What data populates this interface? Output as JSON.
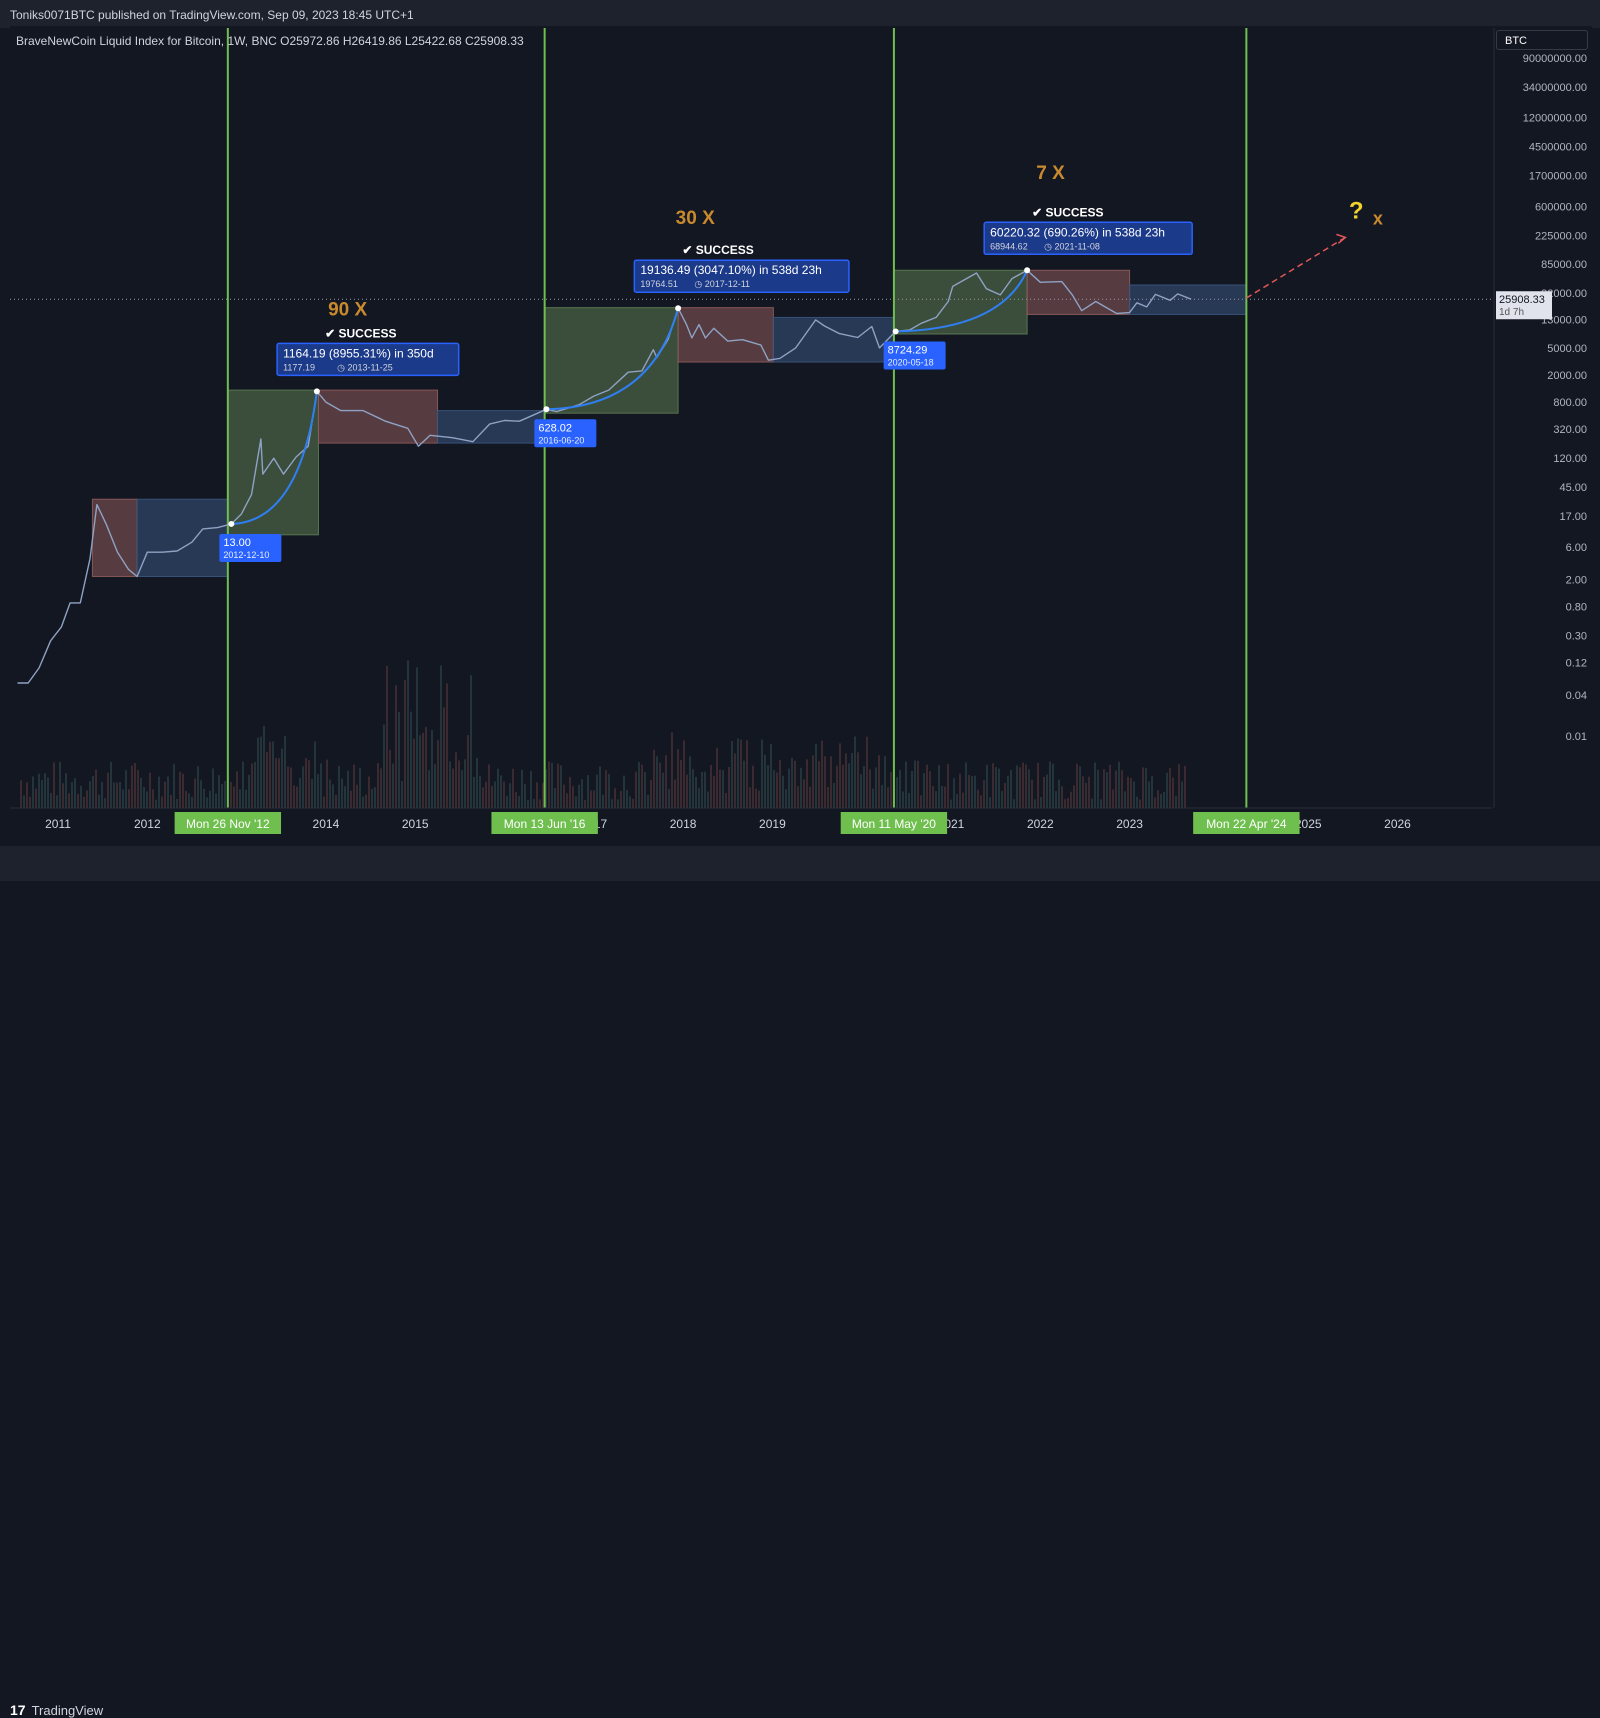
{
  "header": {
    "published": "Toniks0071BTC published on TradingView.com, Sep 09, 2023 18:45 UTC+1"
  },
  "legend": {
    "text": "BraveNewCoin Liquid Index for Bitcoin, 1W, BNC  O25972.86  H26419.86  L25422.68  C25908.33"
  },
  "symbol_box": "BTC",
  "footer": {
    "logo": "TradingView",
    "logo_mark": "17"
  },
  "colors": {
    "bg": "#131722",
    "grid": "#2a2e39",
    "green_line": "#6fbf4f",
    "box_red": "#8e5b5b",
    "box_green": "#5c7c52",
    "box_blue": "#3b557f",
    "price": "#8fa2c4",
    "curve": "#2f7ff3",
    "label_blue": "#2962ff",
    "orange": "#c98a2e",
    "yellow": "#f2d32c",
    "success_white": "#ffffff",
    "dashed_red": "#e05757"
  },
  "chart_data": {
    "type": "line",
    "scale": "log",
    "series_name": "BTC",
    "x_ticks": [
      "2011",
      "2012",
      "2014",
      "2015",
      "2017",
      "2018",
      "2019",
      "2021",
      "2022",
      "2023",
      "2025",
      "2026"
    ],
    "y_ticks": [
      "90000000.00",
      "34000000.00",
      "12000000.00",
      "4500000.00",
      "1700000.00",
      "600000.00",
      "225000.00",
      "85000.00",
      "32000.00",
      "13000.00",
      "5000.00",
      "2000.00",
      "800.00",
      "320.00",
      "120.00",
      "45.00",
      "17.00",
      "6.00",
      "2.00",
      "0.80",
      "0.30",
      "0.12",
      "0.04",
      "0.01"
    ],
    "current_price": "25908.33",
    "current_countdown": "1d 7h",
    "x_range": [
      "2010-07",
      "2026-11"
    ],
    "price_path": [
      [
        "2010-07-18",
        0.06
      ],
      [
        "2010-09-01",
        0.06
      ],
      [
        "2010-10-15",
        0.1
      ],
      [
        "2010-12-01",
        0.25
      ],
      [
        "2011-01-15",
        0.4
      ],
      [
        "2011-02-20",
        0.9
      ],
      [
        "2011-04-01",
        0.9
      ],
      [
        "2011-05-10",
        4
      ],
      [
        "2011-06-08",
        25
      ],
      [
        "2011-07-15",
        13
      ],
      [
        "2011-09-01",
        5
      ],
      [
        "2011-10-15",
        2.8
      ],
      [
        "2011-11-20",
        2.2
      ],
      [
        "2012-01-01",
        5
      ],
      [
        "2012-03-01",
        5
      ],
      [
        "2012-05-01",
        5.2
      ],
      [
        "2012-07-01",
        7
      ],
      [
        "2012-08-15",
        11
      ],
      [
        "2012-10-15",
        11.5
      ],
      [
        "2012-12-10",
        13
      ],
      [
        "2013-01-20",
        18
      ],
      [
        "2013-03-01",
        35
      ],
      [
        "2013-04-09",
        230
      ],
      [
        "2013-04-17",
        70
      ],
      [
        "2013-06-01",
        120
      ],
      [
        "2013-07-10",
        70
      ],
      [
        "2013-09-01",
        125
      ],
      [
        "2013-10-20",
        180
      ],
      [
        "2013-11-25",
        1150
      ],
      [
        "2014-01-01",
        800
      ],
      [
        "2014-03-01",
        600
      ],
      [
        "2014-06-01",
        600
      ],
      [
        "2014-09-01",
        420
      ],
      [
        "2014-12-01",
        330
      ],
      [
        "2015-01-14",
        180
      ],
      [
        "2015-03-01",
        260
      ],
      [
        "2015-06-01",
        240
      ],
      [
        "2015-08-24",
        210
      ],
      [
        "2015-11-01",
        380
      ],
      [
        "2016-01-01",
        430
      ],
      [
        "2016-03-01",
        420
      ],
      [
        "2016-06-20",
        628
      ],
      [
        "2016-08-01",
        580
      ],
      [
        "2016-11-01",
        730
      ],
      [
        "2017-01-01",
        980
      ],
      [
        "2017-03-01",
        1200
      ],
      [
        "2017-05-20",
        2200
      ],
      [
        "2017-07-15",
        2300
      ],
      [
        "2017-09-01",
        4700
      ],
      [
        "2017-09-15",
        3600
      ],
      [
        "2017-11-01",
        6700
      ],
      [
        "2017-12-11",
        19136
      ],
      [
        "2018-01-15",
        11000
      ],
      [
        "2018-02-06",
        7000
      ],
      [
        "2018-03-05",
        11000
      ],
      [
        "2018-04-01",
        7000
      ],
      [
        "2018-05-05",
        9700
      ],
      [
        "2018-07-01",
        6300
      ],
      [
        "2018-09-01",
        6600
      ],
      [
        "2018-11-15",
        5500
      ],
      [
        "2018-12-15",
        3300
      ],
      [
        "2019-02-01",
        3500
      ],
      [
        "2019-04-05",
        5000
      ],
      [
        "2019-06-26",
        12900
      ],
      [
        "2019-08-01",
        10500
      ],
      [
        "2019-10-01",
        8100
      ],
      [
        "2019-12-15",
        7100
      ],
      [
        "2020-02-12",
        10300
      ],
      [
        "2020-03-13",
        5000
      ],
      [
        "2020-05-18",
        8724
      ],
      [
        "2020-07-15",
        9200
      ],
      [
        "2020-09-01",
        11500
      ],
      [
        "2020-11-01",
        14000
      ],
      [
        "2020-12-20",
        24000
      ],
      [
        "2021-01-08",
        40000
      ],
      [
        "2021-04-14",
        63000
      ],
      [
        "2021-05-24",
        37000
      ],
      [
        "2021-07-20",
        30000
      ],
      [
        "2021-09-07",
        52000
      ],
      [
        "2021-11-08",
        68944
      ],
      [
        "2022-01-01",
        46000
      ],
      [
        "2022-03-28",
        47000
      ],
      [
        "2022-05-10",
        30000
      ],
      [
        "2022-06-18",
        17600
      ],
      [
        "2022-08-15",
        24000
      ],
      [
        "2022-11-09",
        16000
      ],
      [
        "2022-12-31",
        16500
      ],
      [
        "2023-01-31",
        23000
      ],
      [
        "2023-03-10",
        20000
      ],
      [
        "2023-04-15",
        30500
      ],
      [
        "2023-06-15",
        25000
      ],
      [
        "2023-07-15",
        31000
      ],
      [
        "2023-09-09",
        25908
      ]
    ],
    "cycle_lines": [
      {
        "date": "2012-11-26",
        "label": "Mon 26 Nov '12"
      },
      {
        "date": "2016-06-13",
        "label": "Mon 13 Jun '16"
      },
      {
        "date": "2020-05-11",
        "label": "Mon 11 May '20"
      },
      {
        "date": "2024-04-22",
        "label": "Mon 22 Apr '24"
      }
    ],
    "boxes": [
      {
        "color": "red",
        "x0": "2011-05-20",
        "x1": "2011-11-20",
        "y0": 2.2,
        "y1": 30
      },
      {
        "color": "blue",
        "x0": "2011-11-20",
        "x1": "2012-11-26",
        "y0": 2.2,
        "y1": 30
      },
      {
        "color": "green",
        "x0": "2012-11-26",
        "x1": "2013-12-01",
        "y0": 9,
        "y1": 1200
      },
      {
        "color": "red",
        "x0": "2013-12-01",
        "x1": "2015-04-01",
        "y0": 200,
        "y1": 1200
      },
      {
        "color": "blue",
        "x0": "2015-04-01",
        "x1": "2016-06-13",
        "y0": 200,
        "y1": 600
      },
      {
        "color": "green",
        "x0": "2016-06-13",
        "x1": "2017-12-11",
        "y0": 550,
        "y1": 19500
      },
      {
        "color": "red",
        "x0": "2017-12-11",
        "x1": "2019-01-05",
        "y0": 3100,
        "y1": 19500
      },
      {
        "color": "blue",
        "x0": "2019-01-05",
        "x1": "2020-05-11",
        "y0": 3100,
        "y1": 14000
      },
      {
        "color": "green",
        "x0": "2020-05-11",
        "x1": "2021-11-08",
        "y0": 8000,
        "y1": 69000
      },
      {
        "color": "red",
        "x0": "2021-11-08",
        "x1": "2023-01-01",
        "y0": 15500,
        "y1": 69000
      },
      {
        "color": "blue",
        "x0": "2023-01-01",
        "x1": "2024-04-22",
        "y0": 15500,
        "y1": 42000
      }
    ],
    "curves": [
      {
        "x0": "2012-12-10",
        "y0": 13,
        "x1": "2013-11-25",
        "y1": 1150
      },
      {
        "x0": "2016-06-20",
        "y0": 628,
        "x1": "2017-12-11",
        "y1": 19136
      },
      {
        "x0": "2020-05-18",
        "y0": 8724,
        "x1": "2021-11-08",
        "y1": 68944
      }
    ],
    "lows": [
      {
        "date": "2012-12-10",
        "price_at": 13,
        "value": "13.00",
        "date_label": "2012-12-10"
      },
      {
        "date": "2016-06-20",
        "price_at": 628,
        "value": "628.02",
        "date_label": "2016-06-20"
      },
      {
        "date": "2020-05-18",
        "price_at": 8724,
        "value": "8724.29",
        "date_label": "2020-05-18"
      }
    ],
    "gains": [
      {
        "date": "2013-11-25",
        "price_at": 1150,
        "text": "1164.19 (8955.31%) in 350d",
        "sub_value": "1177.19",
        "sub_date": "2013-11-25",
        "multiplier": "90 X",
        "mult_date": "2014-01-10",
        "mult_price": 15000,
        "success": "SUCCESS"
      },
      {
        "date": "2017-12-11",
        "price_at": 19136,
        "text": "19136.49 (3047.10%) in 538d 23h",
        "sub_value": "19764.51",
        "sub_date": "2017-12-11",
        "multiplier": "30 X",
        "mult_date": "2017-12-01",
        "mult_price": 330000,
        "success": "SUCCESS"
      },
      {
        "date": "2021-11-08",
        "price_at": 68944,
        "text": "60220.32 (690.26%) in 538d 23h",
        "sub_value": "68944.62",
        "sub_date": "2021-11-08",
        "multiplier": "7 X",
        "mult_date": "2021-12-15",
        "mult_price": 1500000,
        "success": "SUCCESS"
      }
    ],
    "prediction": {
      "arrow_from": [
        "2024-04-22",
        27000
      ],
      "arrow_to": [
        "2025-06-01",
        210000
      ],
      "q": "?",
      "x": "x",
      "q_date": "2025-06-15",
      "q_price": 400000
    }
  }
}
